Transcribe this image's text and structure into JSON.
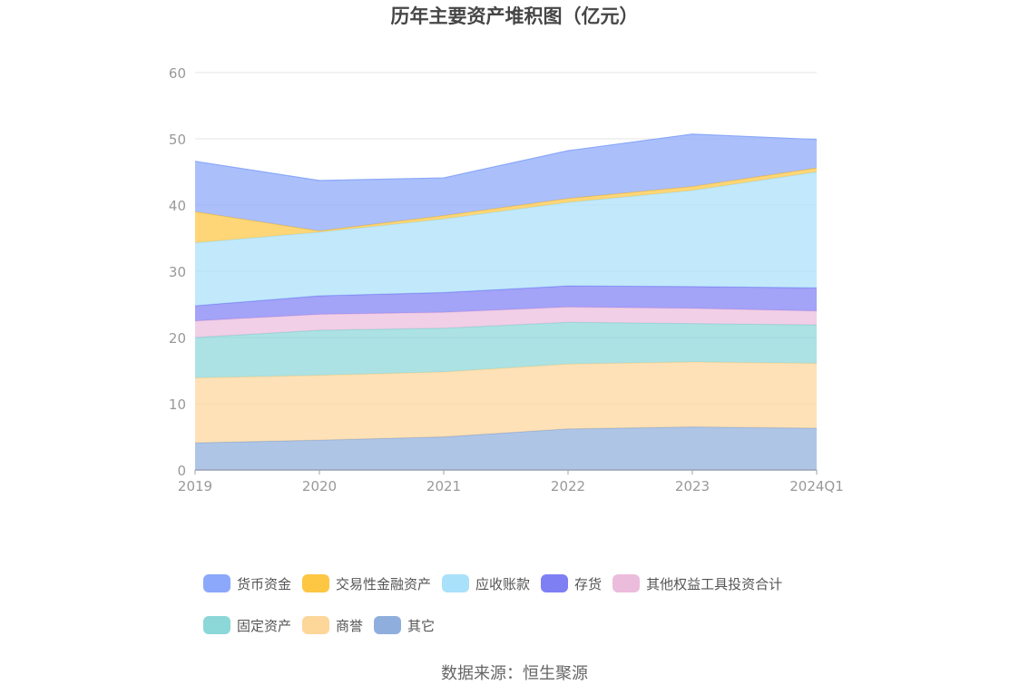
{
  "chart_data": {
    "type": "area",
    "stacked": true,
    "title": "历年主要资产堆积图（亿元）",
    "x": [
      "2019",
      "2020",
      "2021",
      "2022",
      "2023",
      "2024Q1"
    ],
    "ylim": [
      0,
      60
    ],
    "yticks": [
      0,
      10,
      20,
      30,
      40,
      50,
      60
    ],
    "grid": true,
    "legend_position": "bottom",
    "series": [
      {
        "name": "其它",
        "color": "#8faedd",
        "values": [
          4.1,
          4.5,
          5.0,
          6.2,
          6.5,
          6.3
        ]
      },
      {
        "name": "商誉",
        "color": "#fdd69a",
        "values": [
          9.8,
          9.8,
          9.8,
          9.8,
          9.8,
          9.8
        ]
      },
      {
        "name": "固定资产",
        "color": "#8cd7d8",
        "values": [
          6.1,
          6.8,
          6.6,
          6.3,
          5.8,
          5.8
        ]
      },
      {
        "name": "其他权益工具投资合计",
        "color": "#ecbcdc",
        "values": [
          2.5,
          2.4,
          2.4,
          2.3,
          2.3,
          2.1
        ]
      },
      {
        "name": "存货",
        "color": "#7f7ff4",
        "values": [
          2.3,
          2.8,
          3.0,
          3.2,
          3.3,
          3.5
        ]
      },
      {
        "name": "应收账款",
        "color": "#a9e1fa",
        "values": [
          9.5,
          9.6,
          11.1,
          12.6,
          14.5,
          17.5
        ]
      },
      {
        "name": "交易性金融资产",
        "color": "#fdc643",
        "values": [
          4.7,
          0.2,
          0.5,
          0.6,
          0.6,
          0.6
        ]
      },
      {
        "name": "货币资金",
        "color": "#8ba8fa",
        "values": [
          7.6,
          7.6,
          5.7,
          7.2,
          7.9,
          4.3
        ]
      }
    ],
    "legend_order": [
      "货币资金",
      "交易性金融资产",
      "应收账款",
      "存货",
      "其他权益工具投资合计",
      "固定资产",
      "商誉",
      "其它"
    ]
  },
  "source_note": "数据来源：恒生聚源"
}
